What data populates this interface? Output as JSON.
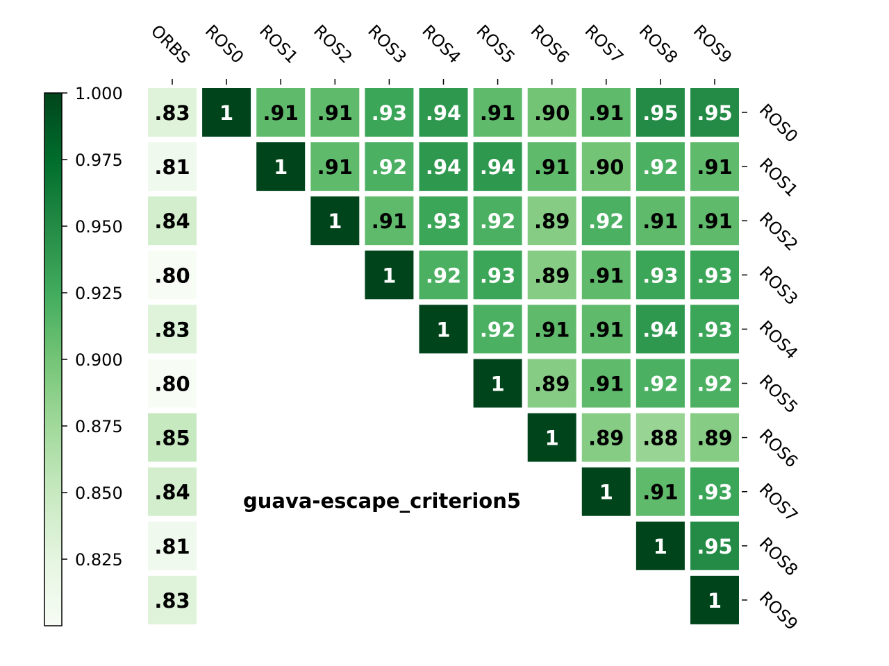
{
  "chart_data": {
    "type": "heatmap",
    "title": "guava-escape_criterion5",
    "x_labels": [
      "ORBS",
      "ROS0",
      "ROS1",
      "ROS2",
      "ROS3",
      "ROS4",
      "ROS5",
      "ROS6",
      "ROS7",
      "ROS8",
      "ROS9"
    ],
    "y_labels": [
      "ROS0",
      "ROS1",
      "ROS2",
      "ROS3",
      "ROS4",
      "ROS5",
      "ROS6",
      "ROS7",
      "ROS8",
      "ROS9"
    ],
    "values": [
      [
        0.83,
        1,
        0.91,
        0.91,
        0.93,
        0.94,
        0.91,
        0.9,
        0.91,
        0.95,
        0.95
      ],
      [
        0.81,
        null,
        1,
        0.91,
        0.92,
        0.94,
        0.94,
        0.91,
        0.9,
        0.92,
        0.91
      ],
      [
        0.84,
        null,
        null,
        1,
        0.91,
        0.93,
        0.92,
        0.89,
        0.92,
        0.91,
        0.91
      ],
      [
        0.8,
        null,
        null,
        null,
        1,
        0.92,
        0.93,
        0.89,
        0.91,
        0.93,
        0.93
      ],
      [
        0.83,
        null,
        null,
        null,
        null,
        1,
        0.92,
        0.91,
        0.91,
        0.94,
        0.93
      ],
      [
        0.8,
        null,
        null,
        null,
        null,
        null,
        1,
        0.89,
        0.91,
        0.92,
        0.92
      ],
      [
        0.85,
        null,
        null,
        null,
        null,
        null,
        null,
        1,
        0.89,
        0.88,
        0.89
      ],
      [
        0.84,
        null,
        null,
        null,
        null,
        null,
        null,
        null,
        1,
        0.91,
        0.93
      ],
      [
        0.81,
        null,
        null,
        null,
        null,
        null,
        null,
        null,
        null,
        1,
        0.95
      ],
      [
        0.83,
        null,
        null,
        null,
        null,
        null,
        null,
        null,
        null,
        null,
        1
      ]
    ],
    "cell_labels": [
      [
        ".83",
        "1",
        ".91",
        ".91",
        ".93",
        ".94",
        ".91",
        ".90",
        ".91",
        ".95",
        ".95"
      ],
      [
        ".81",
        "",
        "1",
        ".91",
        ".92",
        ".94",
        ".94",
        ".91",
        ".90",
        ".92",
        ".91"
      ],
      [
        ".84",
        "",
        "",
        "1",
        ".91",
        ".93",
        ".92",
        ".89",
        ".92",
        ".91",
        ".91"
      ],
      [
        ".80",
        "",
        "",
        "",
        "1",
        ".92",
        ".93",
        ".89",
        ".91",
        ".93",
        ".93"
      ],
      [
        ".83",
        "",
        "",
        "",
        "",
        "1",
        ".92",
        ".91",
        ".91",
        ".94",
        ".93"
      ],
      [
        ".80",
        "",
        "",
        "",
        "",
        "",
        "1",
        ".89",
        ".91",
        ".92",
        ".92"
      ],
      [
        ".85",
        "",
        "",
        "",
        "",
        "",
        "",
        "1",
        ".89",
        ".88",
        ".89"
      ],
      [
        ".84",
        "",
        "",
        "",
        "",
        "",
        "",
        "",
        "1",
        ".91",
        ".93"
      ],
      [
        ".81",
        "",
        "",
        "",
        "",
        "",
        "",
        "",
        "",
        "1",
        ".95"
      ],
      [
        ".83",
        "",
        "",
        "",
        "",
        "",
        "",
        "",
        "",
        "",
        "1"
      ]
    ],
    "colormap": "Greens",
    "vmin": 0.8,
    "vmax": 1.0,
    "colorbar": {
      "ticks": [
        1.0,
        0.975,
        0.95,
        0.925,
        0.9,
        0.875,
        0.85,
        0.825
      ],
      "tick_labels": [
        "1.000",
        "0.975",
        "0.950",
        "0.925",
        "0.900",
        "0.875",
        "0.850",
        "0.825"
      ],
      "placement": "left"
    },
    "x_axis_position": "top",
    "y_axis_position": "right",
    "grid": false
  }
}
